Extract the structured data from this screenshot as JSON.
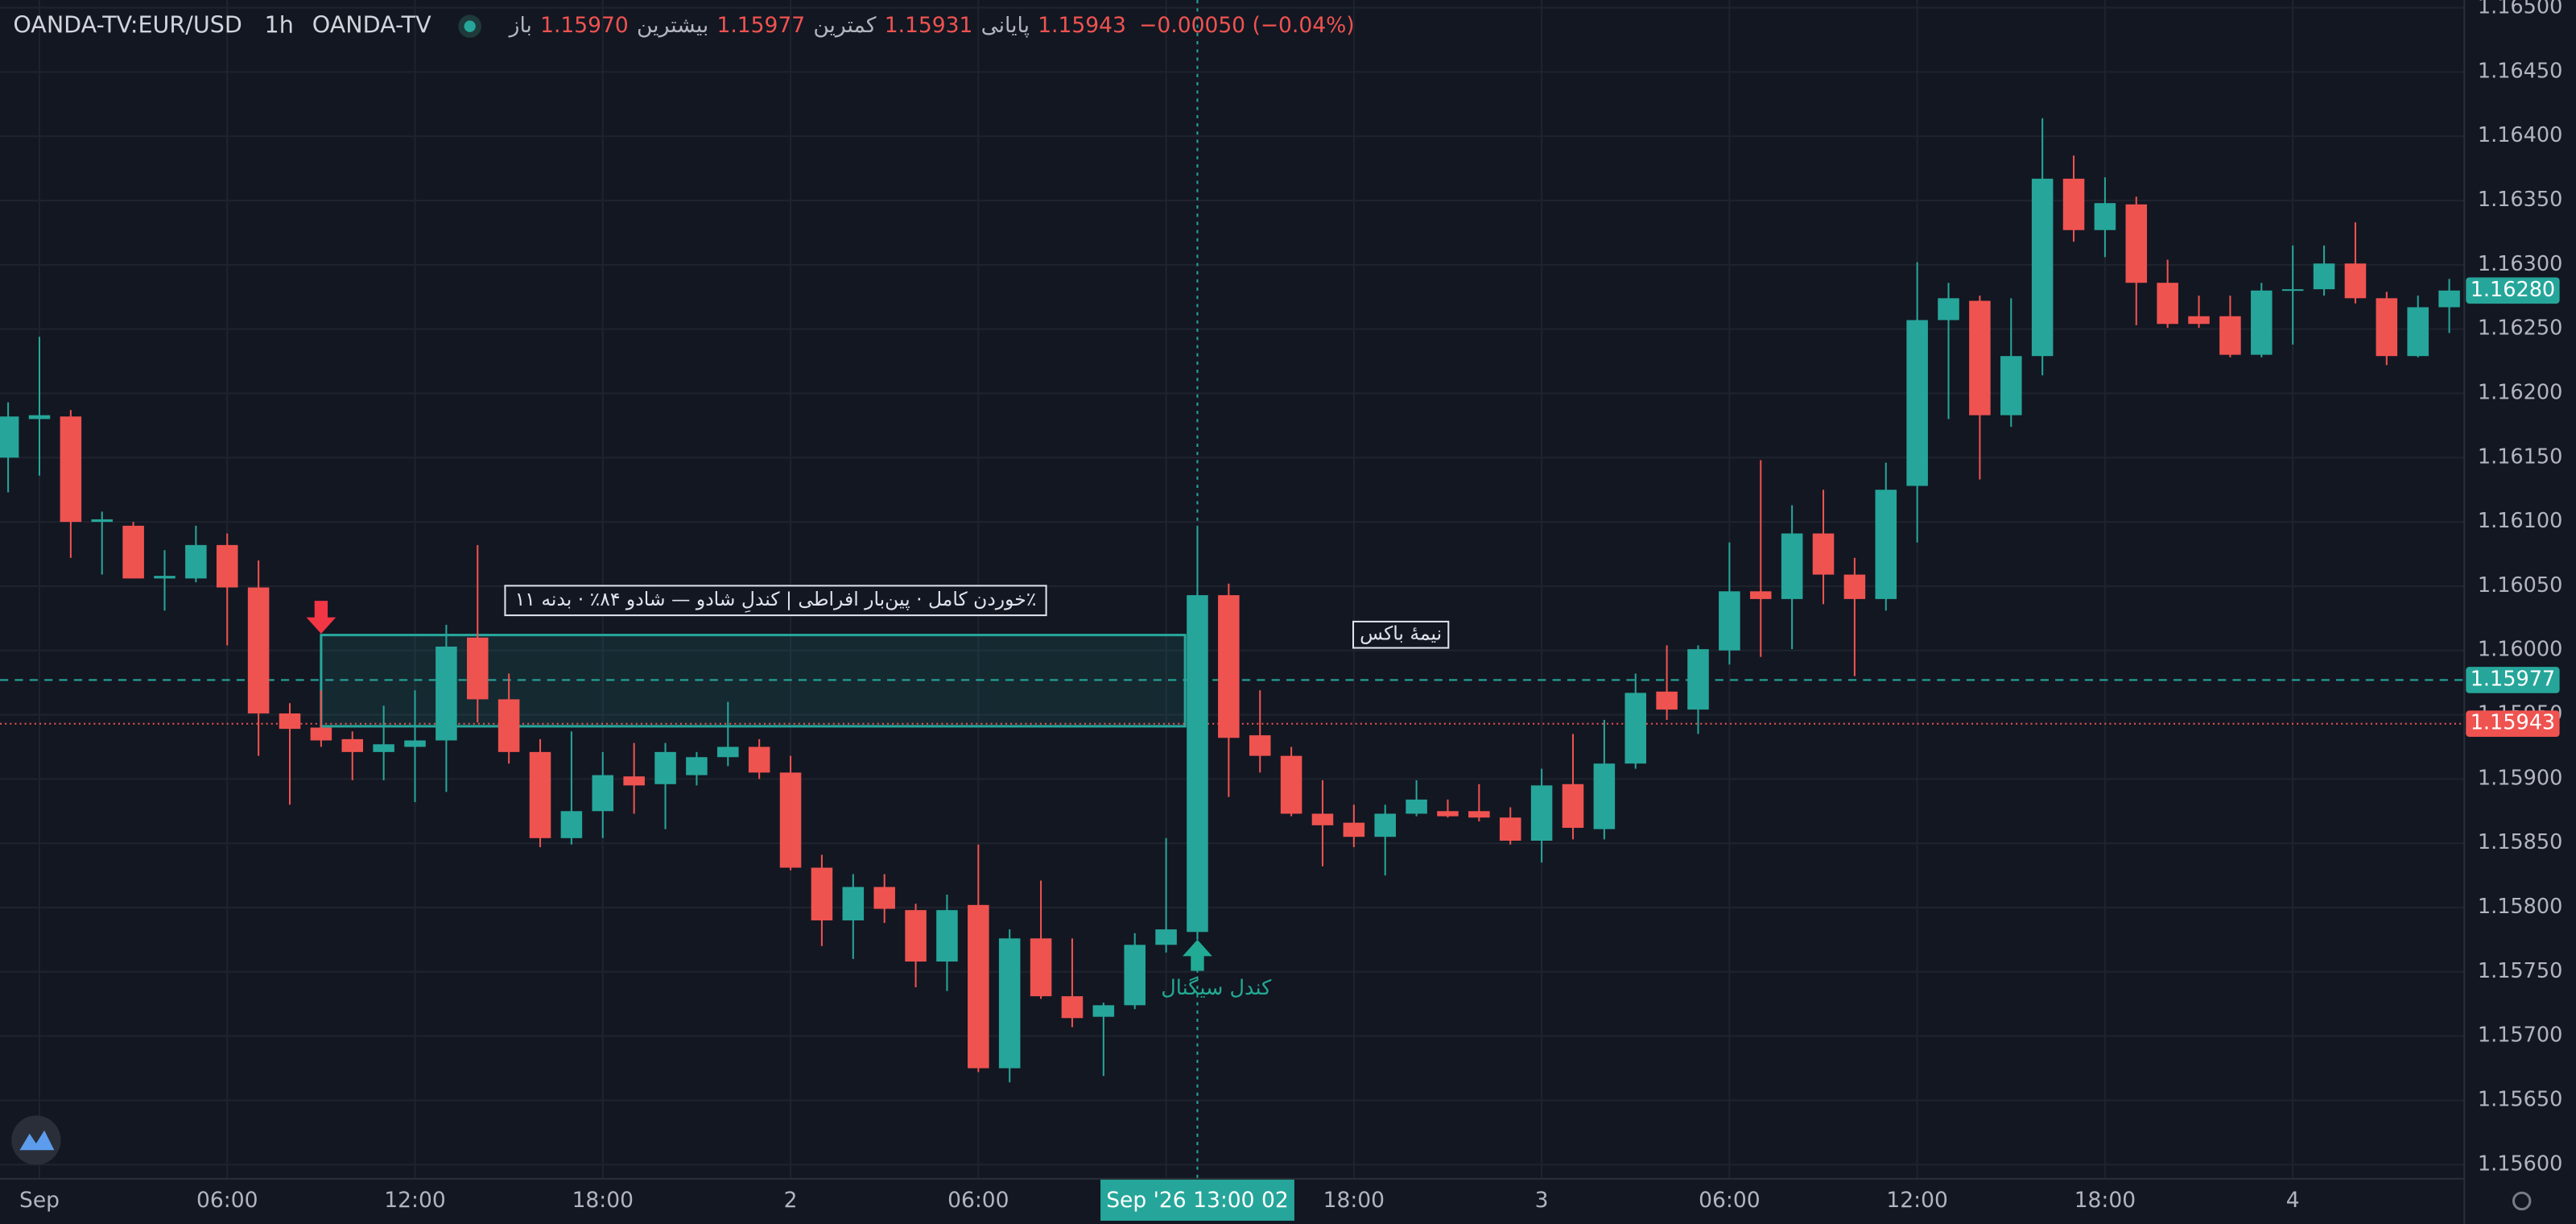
{
  "chart_data": {
    "type": "candlestick",
    "symbol": "OANDA-TV:EUR/USD",
    "interval": "1h",
    "source": "OANDA-TV",
    "ohlc_legend": [
      {
        "label": "باز",
        "value": "1.15970"
      },
      {
        "label": "بیشترین",
        "value": "1.15977"
      },
      {
        "label": "کمترین",
        "value": "1.15931"
      },
      {
        "label": "پایانی",
        "value": "1.15943"
      }
    ],
    "change": "−0.00050 (−0.04%)",
    "up_color": "#26a69a",
    "down_color": "#ef5350",
    "x": [
      -1,
      0,
      1,
      2,
      3,
      4,
      5,
      6,
      7,
      8,
      9,
      10,
      11,
      12,
      13,
      14,
      15,
      16,
      17,
      18,
      19,
      20,
      21,
      22,
      23,
      24,
      25,
      26,
      27,
      28,
      29,
      30,
      31,
      32,
      33,
      34,
      35,
      36,
      37,
      38,
      39,
      40,
      41,
      42,
      43,
      44,
      45,
      46,
      47,
      48,
      49,
      50,
      51,
      52,
      53,
      54,
      55,
      56,
      57,
      58,
      59,
      60,
      61,
      62,
      63,
      64,
      65,
      66,
      67,
      68,
      69,
      70,
      71,
      72,
      73,
      74,
      75,
      76,
      77
    ],
    "open": [
      1.1615,
      1.1618,
      1.16182,
      1.161,
      1.16097,
      1.16056,
      1.16056,
      1.16082,
      1.16049,
      1.15951,
      1.1594,
      1.15931,
      1.15921,
      1.15925,
      1.1593,
      1.1601,
      1.15962,
      1.15921,
      1.15854,
      1.15875,
      1.15902,
      1.15896,
      1.15903,
      1.15917,
      1.15925,
      1.15905,
      1.15831,
      1.1579,
      1.15816,
      1.15798,
      1.15758,
      1.15802,
      1.15675,
      1.15776,
      1.15731,
      1.15715,
      1.15724,
      1.15771,
      1.15781,
      1.16043,
      1.15934,
      1.15918,
      1.15873,
      1.15866,
      1.15855,
      1.15873,
      1.15875,
      1.15875,
      1.1587,
      1.15852,
      1.15896,
      1.15861,
      1.15912,
      1.15968,
      1.15954,
      1.16,
      1.16046,
      1.1604,
      1.16091,
      1.16059,
      1.1604,
      1.16128,
      1.16257,
      1.16272,
      1.16183,
      1.16229,
      1.16367,
      1.16327,
      1.16347,
      1.16286,
      1.1626,
      1.1626,
      1.1623,
      1.1628,
      1.16281,
      1.16301,
      1.16274,
      1.16229,
      1.16267
    ],
    "high": [
      1.16193,
      1.16244,
      1.16187,
      1.16108,
      1.161,
      1.16078,
      1.16097,
      1.16091,
      1.1607,
      1.15959,
      1.15969,
      1.15937,
      1.15957,
      1.15969,
      1.1602,
      1.16082,
      1.15982,
      1.15931,
      1.15937,
      1.15921,
      1.15928,
      1.15928,
      1.15921,
      1.1596,
      1.15931,
      1.15918,
      1.15841,
      1.15826,
      1.15826,
      1.15803,
      1.1581,
      1.15849,
      1.15783,
      1.15821,
      1.15776,
      1.15726,
      1.1578,
      1.15854,
      1.16095,
      1.16052,
      1.15969,
      1.15925,
      1.15899,
      1.1588,
      1.1588,
      1.15899,
      1.15884,
      1.15896,
      1.15878,
      1.15908,
      1.15935,
      1.15946,
      1.15982,
      1.16004,
      1.16004,
      1.16084,
      1.16148,
      1.16113,
      1.16125,
      1.16072,
      1.16146,
      1.16302,
      1.16286,
      1.16276,
      1.16274,
      1.16414,
      1.16385,
      1.16368,
      1.16353,
      1.16304,
      1.16276,
      1.16276,
      1.16286,
      1.16315,
      1.16315,
      1.16333,
      1.16279,
      1.16276,
      1.16289
    ],
    "low": [
      1.16123,
      1.16136,
      1.16072,
      1.16059,
      1.16056,
      1.16031,
      1.16053,
      1.16004,
      1.15918,
      1.1588,
      1.15925,
      1.15899,
      1.15899,
      1.15882,
      1.1589,
      1.15944,
      1.15912,
      1.15847,
      1.15849,
      1.15854,
      1.15873,
      1.15861,
      1.15895,
      1.1591,
      1.159,
      1.15829,
      1.1577,
      1.1576,
      1.15788,
      1.15738,
      1.15735,
      1.15672,
      1.15664,
      1.15729,
      1.15707,
      1.15669,
      1.15721,
      1.15765,
      1.15775,
      1.15886,
      1.15905,
      1.15871,
      1.15832,
      1.15847,
      1.15825,
      1.15871,
      1.1587,
      1.15867,
      1.15849,
      1.15835,
      1.15853,
      1.15853,
      1.15908,
      1.15946,
      1.15935,
      1.15989,
      1.15995,
      1.16001,
      1.16036,
      1.1598,
      1.16031,
      1.16084,
      1.1618,
      1.16133,
      1.16174,
      1.16214,
      1.16318,
      1.16306,
      1.16253,
      1.16251,
      1.16251,
      1.16228,
      1.16228,
      1.16238,
      1.16276,
      1.1627,
      1.16222,
      1.16228,
      1.16247
    ],
    "close": [
      1.16182,
      1.16183,
      1.161,
      1.16102,
      1.16056,
      1.16058,
      1.16082,
      1.16049,
      1.15951,
      1.15939,
      1.1593,
      1.15921,
      1.15927,
      1.1593,
      1.16003,
      1.15962,
      1.15921,
      1.15854,
      1.15875,
      1.15903,
      1.15895,
      1.15921,
      1.15917,
      1.15925,
      1.15905,
      1.15831,
      1.1579,
      1.15816,
      1.15799,
      1.15758,
      1.15798,
      1.15675,
      1.15776,
      1.15731,
      1.15714,
      1.15724,
      1.15771,
      1.15783,
      1.16043,
      1.15932,
      1.15918,
      1.15873,
      1.15864,
      1.15855,
      1.15873,
      1.15884,
      1.15871,
      1.1587,
      1.15852,
      1.15895,
      1.15862,
      1.15912,
      1.15967,
      1.15954,
      1.16001,
      1.16046,
      1.1604,
      1.16091,
      1.16059,
      1.1604,
      1.16125,
      1.16257,
      1.16274,
      1.16183,
      1.16229,
      1.16367,
      1.16327,
      1.16348,
      1.16286,
      1.16254,
      1.16254,
      1.1623,
      1.1628,
      1.16281,
      1.16301,
      1.16274,
      1.16229,
      1.16267,
      1.1628
    ],
    "xlim": [
      -1.26,
      77.48
    ],
    "xticks": [
      {
        "value": 0,
        "label": "Sep"
      },
      {
        "value": 6,
        "label": "06:00"
      },
      {
        "value": 12,
        "label": "12:00"
      },
      {
        "value": 18,
        "label": "18:00"
      },
      {
        "value": 24,
        "label": "2"
      },
      {
        "value": 30,
        "label": "06:00"
      },
      {
        "value": 42,
        "label": "18:00"
      },
      {
        "value": 48,
        "label": "3"
      },
      {
        "value": 54,
        "label": "06:00"
      },
      {
        "value": 60,
        "label": "12:00"
      },
      {
        "value": 66,
        "label": "18:00"
      },
      {
        "value": 72,
        "label": "4"
      }
    ],
    "grid_x": [
      36
    ],
    "ylim": [
      1.155896,
      1.16506
    ],
    "yticks": [
      {
        "value": 1.156,
        "label": "1.15600"
      },
      {
        "value": 1.1565,
        "label": "1.15650"
      },
      {
        "value": 1.157,
        "label": "1.15700"
      },
      {
        "value": 1.1575,
        "label": "1.15750"
      },
      {
        "value": 1.158,
        "label": "1.15800"
      },
      {
        "value": 1.1585,
        "label": "1.15850"
      },
      {
        "value": 1.159,
        "label": "1.15900"
      },
      {
        "value": 1.1595,
        "label": "1.15950"
      },
      {
        "value": 1.16,
        "label": "1.16000"
      },
      {
        "value": 1.1605,
        "label": "1.16050"
      },
      {
        "value": 1.161,
        "label": "1.16100"
      },
      {
        "value": 1.1615,
        "label": "1.16150"
      },
      {
        "value": 1.162,
        "label": "1.16200"
      },
      {
        "value": 1.1625,
        "label": "1.16250"
      },
      {
        "value": 1.163,
        "label": "1.16300"
      },
      {
        "value": 1.1635,
        "label": "1.16350"
      },
      {
        "value": 1.164,
        "label": "1.16400"
      },
      {
        "value": 1.1645,
        "label": "1.16450"
      },
      {
        "value": 1.165,
        "label": "1.16500"
      }
    ],
    "grid": true,
    "price_lines": [
      {
        "value": 1.15943,
        "label": "1.15943",
        "color": "#ef5350"
      }
    ],
    "last_price": {
      "value": 1.1628,
      "label": "1.16280",
      "color": "#26a69a"
    },
    "crosshair": {
      "x": 37,
      "x_label": "Sep '26  13:00 02",
      "y": 1.15977,
      "y_label": "1.15977",
      "color": "#26a69a"
    },
    "box": {
      "x0": 9,
      "x1": 37,
      "top": 1.16012,
      "bottom": 1.15941,
      "color": "#26a69a",
      "label": "٪خوردن کامل · پین‌بار افراطی | کندلِ شادو — شادو ۸۴٪ · بدنه ۱۱"
    },
    "mid_label": {
      "text": "نیمهٔ باکس",
      "x": 43.5,
      "y": 1.16002
    },
    "markers": [
      {
        "x": 9,
        "y": 1.16013,
        "direction": "down",
        "color": "#f23645"
      },
      {
        "x": 37,
        "y": 1.15775,
        "direction": "up",
        "color": "#22ab94",
        "label": "کندل سیگنال"
      }
    ]
  }
}
